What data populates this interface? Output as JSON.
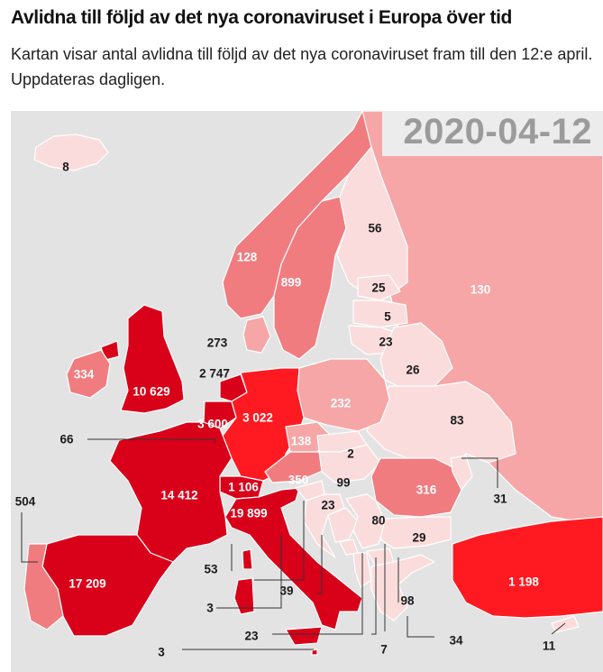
{
  "title": "Avlidna till följd av det nya coronaviruset i Europa över tid",
  "subtitle": "Kartan visar antal avlidna till följd av det nya coronaviruset fram till den 12:e april. Uppdateras dagligen.",
  "date": "2020-04-12",
  "colors": {
    "sea": "#e3e3e3",
    "border": "#ffffff",
    "very_high": "#d90019",
    "high": "#ff1a22",
    "medium": "#f07c80",
    "low": "#f6a6a6",
    "very_low": "#fbdcdc"
  },
  "labels": [
    {
      "value": "8",
      "style": "dark"
    },
    {
      "value": "56",
      "style": "dark"
    },
    {
      "value": "128",
      "style": "light"
    },
    {
      "value": "899",
      "style": "light"
    },
    {
      "value": "130",
      "style": "light"
    },
    {
      "value": "25",
      "style": "dark"
    },
    {
      "value": "5",
      "style": "dark"
    },
    {
      "value": "23",
      "style": "dark"
    },
    {
      "value": "273",
      "style": "dark"
    },
    {
      "value": "334",
      "style": "light"
    },
    {
      "value": "10 629",
      "style": "light"
    },
    {
      "value": "2 747",
      "style": "dark"
    },
    {
      "value": "26",
      "style": "dark"
    },
    {
      "value": "232",
      "style": "light"
    },
    {
      "value": "3 600",
      "style": "light"
    },
    {
      "value": "3 022",
      "style": "light"
    },
    {
      "value": "83",
      "style": "dark"
    },
    {
      "value": "66",
      "style": "dark"
    },
    {
      "value": "138",
      "style": "light"
    },
    {
      "value": "2",
      "style": "dark"
    },
    {
      "value": "14 412",
      "style": "light"
    },
    {
      "value": "1 106",
      "style": "light"
    },
    {
      "value": "350",
      "style": "light"
    },
    {
      "value": "99",
      "style": "dark"
    },
    {
      "value": "316",
      "style": "light"
    },
    {
      "value": "31",
      "style": "dark"
    },
    {
      "value": "504",
      "style": "dark"
    },
    {
      "value": "19 899",
      "style": "light"
    },
    {
      "value": "23",
      "style": "dark"
    },
    {
      "value": "80",
      "style": "dark"
    },
    {
      "value": "29",
      "style": "dark"
    },
    {
      "value": "17 209",
      "style": "light"
    },
    {
      "value": "53",
      "style": "dark"
    },
    {
      "value": "1 198",
      "style": "light"
    },
    {
      "value": "39",
      "style": "dark"
    },
    {
      "value": "98",
      "style": "dark"
    },
    {
      "value": "3",
      "style": "dark"
    },
    {
      "value": "23",
      "style": "dark"
    },
    {
      "value": "34",
      "style": "dark"
    },
    {
      "value": "11",
      "style": "dark"
    },
    {
      "value": "7",
      "style": "dark"
    },
    {
      "value": "3",
      "style": "dark"
    }
  ]
}
